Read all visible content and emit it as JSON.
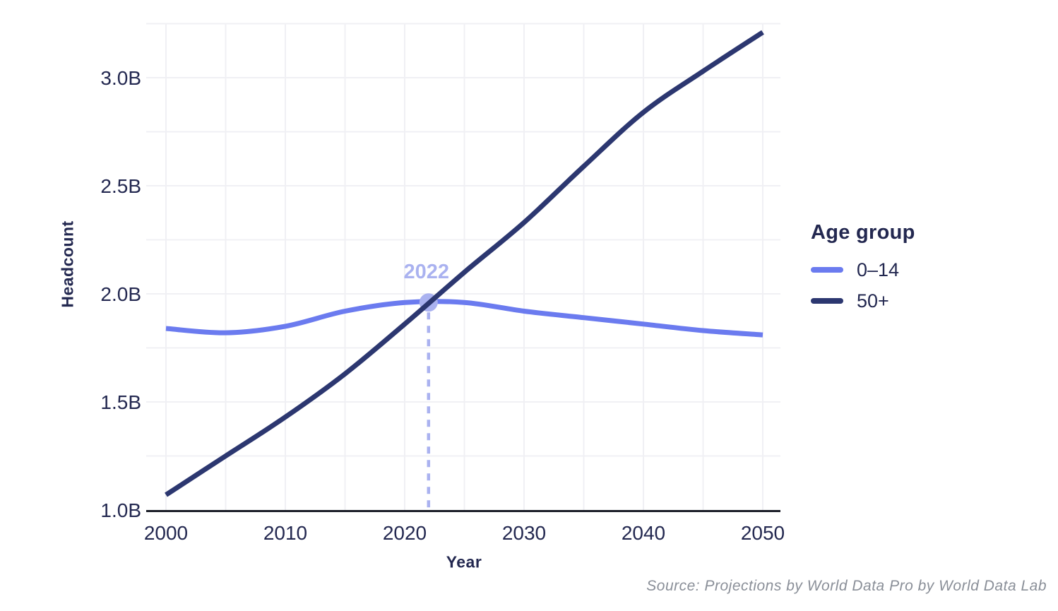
{
  "chart_data": {
    "type": "line",
    "title": "",
    "xlabel": "Year",
    "ylabel": "Headcount",
    "x": [
      2000,
      2005,
      2010,
      2015,
      2020,
      2025,
      2030,
      2035,
      2040,
      2045,
      2050
    ],
    "series": [
      {
        "name": "0–14",
        "color": "#6b7bef",
        "values": [
          1.84,
          1.82,
          1.85,
          1.92,
          1.96,
          1.96,
          1.92,
          1.89,
          1.86,
          1.83,
          1.81
        ]
      },
      {
        "name": "50+",
        "color": "#2c3770",
        "values": [
          1.07,
          1.25,
          1.43,
          1.63,
          1.86,
          2.1,
          2.33,
          2.59,
          2.84,
          3.03,
          3.21
        ]
      }
    ],
    "xticks": {
      "values": [
        2000,
        2010,
        2020,
        2030,
        2040,
        2050
      ],
      "labels": [
        "2000",
        "2010",
        "2020",
        "2030",
        "2040",
        "2050"
      ]
    },
    "yticks": {
      "values": [
        1.0,
        1.5,
        2.0,
        2.5,
        3.0
      ],
      "labels": [
        "1.0B",
        "1.5B",
        "2.0B",
        "2.5B",
        "3.0B"
      ]
    },
    "xlim": [
      2000,
      2050
    ],
    "ylim": [
      1.0,
      3.25
    ],
    "grid": "on",
    "legend": {
      "title": "Age group",
      "position": "right"
    },
    "annotation": {
      "label": "2022",
      "x": 2022,
      "y": 1.96
    }
  },
  "source_note": "Source: Projections by World Data Pro by World Data Lab",
  "colors": {
    "series_child": "#6b7bef",
    "series_senior": "#2c3770",
    "annotation": "#aab2f0",
    "axis_text": "#232850",
    "grid_line": "#f0f0f4",
    "axis_line": "#1b1e28",
    "source_text": "#8a8f98",
    "background": "#ffffff"
  }
}
